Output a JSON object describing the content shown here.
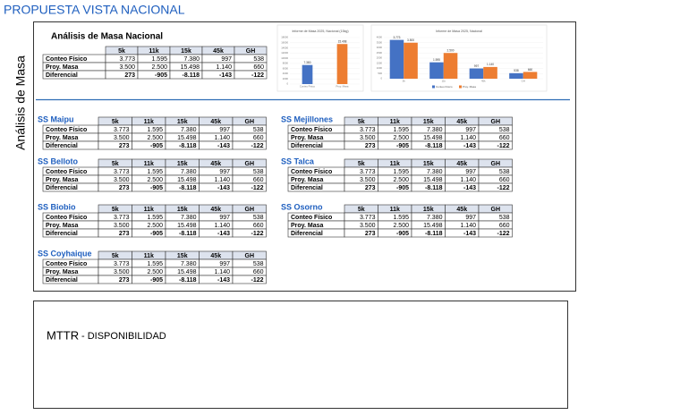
{
  "header": {
    "title": "PROPUESTA VISTA NACIONAL",
    "section": "Análisis de Masa"
  },
  "national": {
    "title": "Análisis de Masa Nacional",
    "table": {
      "columns": [
        "5k",
        "11k",
        "15k",
        "45k",
        "GH"
      ],
      "rows": [
        {
          "label": "Conteo Físico",
          "cells": [
            "3.773",
            "1.595",
            "7.380",
            "997",
            "538"
          ]
        },
        {
          "label": "Proy. Masa",
          "cells": [
            "3.500",
            "2.500",
            "15.498",
            "1.140",
            "660"
          ]
        },
        {
          "label": "Diferencial",
          "cells": [
            "273",
            "-905",
            "-8.118",
            "-143",
            "-122"
          ]
        }
      ]
    }
  },
  "charts": [
    {
      "type": "bar",
      "title": "Informe de Masa 2025, Nacional (15kg)",
      "categories": [
        "Conteo Físico",
        "Proy. Masa"
      ],
      "values": [
        7380,
        15498
      ],
      "value_labels": [
        "7.380",
        "15.498"
      ],
      "colors": [
        "#4472c4",
        "#ed7d31"
      ],
      "ylim": [
        0,
        18000
      ],
      "yticks": [
        0,
        2000,
        4000,
        6000,
        8000,
        10000,
        12000,
        14000,
        16000,
        18000
      ]
    },
    {
      "type": "bar",
      "title": "Informe de Masa 2025, Nacional",
      "categories": [
        "5k",
        "11k",
        "45k",
        "GH"
      ],
      "series": [
        {
          "name": "Conteo Físico",
          "color": "#4472c4",
          "values": [
            3773,
            1595,
            997,
            538
          ],
          "value_labels": [
            "3.773",
            "1.595",
            "997",
            "538"
          ]
        },
        {
          "name": "Proy. Masa",
          "color": "#ed7d31",
          "values": [
            3500,
            2500,
            1140,
            660
          ],
          "value_labels": [
            "3.500",
            "2.500",
            "1.140",
            "660"
          ]
        }
      ],
      "ylim": [
        0,
        4000
      ],
      "yticks": [
        0,
        500,
        1000,
        1500,
        2000,
        2500,
        3000,
        3500,
        4000
      ]
    }
  ],
  "stations": [
    {
      "name": "SS Maipu",
      "table": {
        "columns": [
          "5k",
          "11k",
          "15k",
          "45k",
          "GH"
        ],
        "rows": [
          {
            "label": "Conteo Físico",
            "cells": [
              "3.773",
              "1.595",
              "7.380",
              "997",
              "538"
            ]
          },
          {
            "label": "Proy. Masa",
            "cells": [
              "3.500",
              "2.500",
              "15.498",
              "1.140",
              "660"
            ]
          },
          {
            "label": "Diferencial",
            "cells": [
              "273",
              "-905",
              "-8.118",
              "-143",
              "-122"
            ]
          }
        ]
      }
    },
    {
      "name": "SS Belloto",
      "table": {
        "columns": [
          "5k",
          "11k",
          "15k",
          "45k",
          "GH"
        ],
        "rows": [
          {
            "label": "Conteo Físico",
            "cells": [
              "3.773",
              "1.595",
              "7.380",
              "997",
              "538"
            ]
          },
          {
            "label": "Proy. Masa",
            "cells": [
              "3.500",
              "2.500",
              "15.498",
              "1.140",
              "660"
            ]
          },
          {
            "label": "Diferencial",
            "cells": [
              "273",
              "-905",
              "-8.118",
              "-143",
              "-122"
            ]
          }
        ]
      }
    },
    {
      "name": "SS Biobio",
      "table": {
        "columns": [
          "5k",
          "11k",
          "15k",
          "45k",
          "GH"
        ],
        "rows": [
          {
            "label": "Conteo Físico",
            "cells": [
              "3.773",
              "1.595",
              "7.380",
              "997",
              "538"
            ]
          },
          {
            "label": "Proy. Masa",
            "cells": [
              "3.500",
              "2.500",
              "15.498",
              "1.140",
              "660"
            ]
          },
          {
            "label": "Diferencial",
            "cells": [
              "273",
              "-905",
              "-8.118",
              "-143",
              "-122"
            ]
          }
        ]
      }
    },
    {
      "name": "SS Coyhaique",
      "table": {
        "columns": [
          "5k",
          "11k",
          "15k",
          "45k",
          "GH"
        ],
        "rows": [
          {
            "label": "Conteo Físico",
            "cells": [
              "3.773",
              "1.595",
              "7.380",
              "997",
              "538"
            ]
          },
          {
            "label": "Proy. Masa",
            "cells": [
              "3.500",
              "2.500",
              "15.498",
              "1.140",
              "660"
            ]
          },
          {
            "label": "Diferencial",
            "cells": [
              "273",
              "-905",
              "-8.118",
              "-143",
              "-122"
            ]
          }
        ]
      }
    },
    {
      "name": "SS Mejillones",
      "table": {
        "columns": [
          "5k",
          "11k",
          "15k",
          "45k",
          "GH"
        ],
        "rows": [
          {
            "label": "Conteo Físico",
            "cells": [
              "3.773",
              "1.595",
              "7.380",
              "997",
              "538"
            ]
          },
          {
            "label": "Proy. Masa",
            "cells": [
              "3.500",
              "2.500",
              "15.498",
              "1.140",
              "660"
            ]
          },
          {
            "label": "Diferencial",
            "cells": [
              "273",
              "-905",
              "-8.118",
              "-143",
              "-122"
            ]
          }
        ]
      }
    },
    {
      "name": "SS Talca",
      "table": {
        "columns": [
          "5k",
          "11k",
          "15k",
          "45k",
          "GH"
        ],
        "rows": [
          {
            "label": "Conteo Físico",
            "cells": [
              "3.773",
              "1.595",
              "7.380",
              "997",
              "538"
            ]
          },
          {
            "label": "Proy. Masa",
            "cells": [
              "3.500",
              "2.500",
              "15.498",
              "1.140",
              "660"
            ]
          },
          {
            "label": "Diferencial",
            "cells": [
              "273",
              "-905",
              "-8.118",
              "-143",
              "-122"
            ]
          }
        ]
      }
    },
    {
      "name": "SS Osorno",
      "table": {
        "columns": [
          "5k",
          "11k",
          "15k",
          "45k",
          "GH"
        ],
        "rows": [
          {
            "label": "Conteo Físico",
            "cells": [
              "3.773",
              "1.595",
              "7.380",
              "997",
              "538"
            ]
          },
          {
            "label": "Proy. Masa",
            "cells": [
              "3.500",
              "2.500",
              "15.498",
              "1.140",
              "660"
            ]
          },
          {
            "label": "Diferencial",
            "cells": [
              "273",
              "-905",
              "-8.118",
              "-143",
              "-122"
            ]
          }
        ]
      }
    }
  ],
  "mttr": {
    "title": "MTTR",
    "subtitle": "- DISPONIBILIDAD"
  }
}
